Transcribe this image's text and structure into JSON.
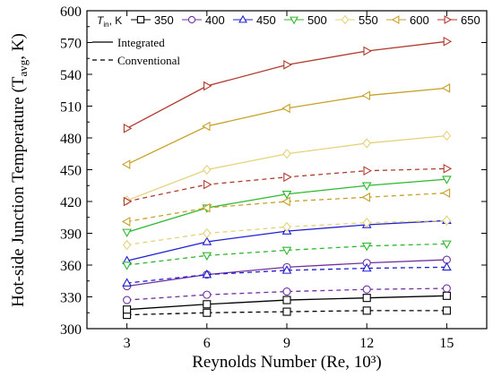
{
  "chart_data": {
    "type": "line",
    "xlabel": "Reynolds Number (Re, 10³)",
    "ylabel": "Hot-side Junction Temperature (T",
    "ylabel_sub": "avg",
    "ylabel_end": ", K)",
    "legend_title": "T",
    "legend_title_sub": "in",
    "legend_title_end": ", K",
    "x": [
      3,
      6,
      9,
      12,
      15
    ],
    "x_ticks": [
      "3",
      "6",
      "9",
      "12",
      "15"
    ],
    "xlim": [
      1.5,
      16.5
    ],
    "y_ticks": [
      "300",
      "330",
      "360",
      "390",
      "420",
      "450",
      "480",
      "510",
      "540",
      "570",
      "600"
    ],
    "ylim": [
      300,
      600
    ],
    "style_legend": [
      {
        "label": "Integrated",
        "dash": "solid"
      },
      {
        "label": "Conventional",
        "dash": "dashed"
      }
    ],
    "series": [
      {
        "name": "350",
        "color": "#000000",
        "marker": "square",
        "integrated": [
          318,
          323,
          327,
          329,
          331
        ],
        "conventional": [
          313,
          315,
          316,
          317,
          317
        ]
      },
      {
        "name": "400",
        "color": "#7030A0",
        "marker": "circle",
        "integrated": [
          340,
          351,
          358,
          362,
          365
        ],
        "conventional": [
          327,
          332,
          335,
          337,
          338
        ]
      },
      {
        "name": "450",
        "color": "#1F1FD0",
        "marker": "triangle-up",
        "integrated": [
          364,
          382,
          392,
          398,
          402
        ],
        "conventional": [
          343,
          351,
          355,
          357,
          358
        ]
      },
      {
        "name": "500",
        "color": "#2EB82E",
        "marker": "triangle-down",
        "integrated": [
          391,
          414,
          427,
          435,
          441
        ],
        "conventional": [
          360,
          369,
          374,
          378,
          380
        ]
      },
      {
        "name": "550",
        "color": "#E6D27A",
        "marker": "diamond",
        "integrated": [
          421,
          450,
          465,
          475,
          482
        ],
        "conventional": [
          379,
          390,
          396,
          400,
          402
        ]
      },
      {
        "name": "600",
        "color": "#C8A028",
        "marker": "triangle-left",
        "integrated": [
          455,
          491,
          508,
          520,
          527
        ],
        "conventional": [
          401,
          414,
          420,
          424,
          428
        ]
      },
      {
        "name": "650",
        "color": "#B03A2E",
        "marker": "triangle-right",
        "integrated": [
          489,
          529,
          549,
          562,
          571
        ],
        "conventional": [
          420,
          436,
          443,
          449,
          451
        ]
      }
    ]
  }
}
